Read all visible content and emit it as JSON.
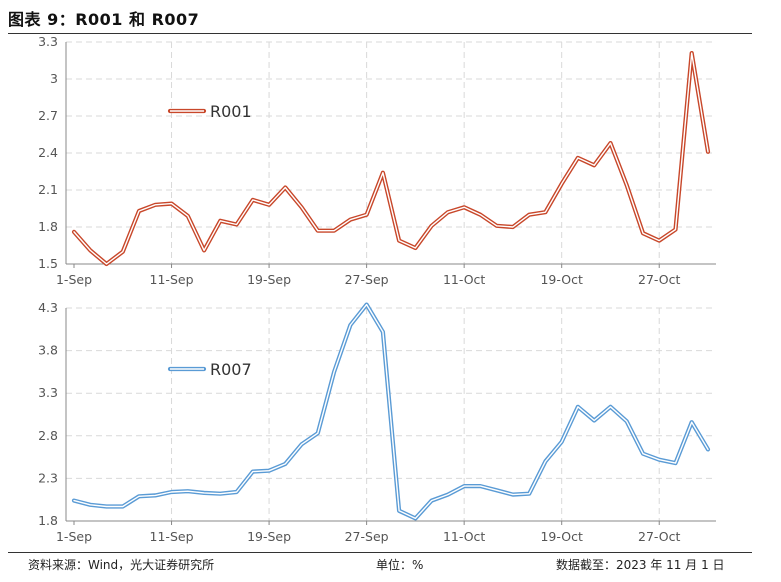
{
  "header": {
    "title": "图表 9：R001 和 R007"
  },
  "footer": {
    "source": "资料来源：Wind，光大证券研究所",
    "unit": "单位：%",
    "date": "数据截至：2023 年 11 月 1 日"
  },
  "chart_data": [
    {
      "type": "line",
      "title": "",
      "xlabel": "",
      "ylabel": "",
      "x_tick_labels": [
        "1-Sep",
        "11-Sep",
        "19-Sep",
        "27-Sep",
        "11-Oct",
        "19-Oct",
        "27-Oct"
      ],
      "x_tick_index": [
        0,
        6,
        12,
        18,
        24,
        30,
        36
      ],
      "y_tick_labels": [
        "1.5",
        "1.8",
        "2.1",
        "2.4",
        "2.7",
        "3",
        "3.3"
      ],
      "ylim": [
        1.5,
        3.3
      ],
      "grid": true,
      "legend": "upper-left",
      "series": [
        {
          "name": "R001",
          "color": "#c8472a",
          "values": [
            1.76,
            1.61,
            1.5,
            1.6,
            1.93,
            1.98,
            1.99,
            1.89,
            1.61,
            1.85,
            1.82,
            2.02,
            1.98,
            2.12,
            1.96,
            1.77,
            1.77,
            1.86,
            1.9,
            2.24,
            1.69,
            1.63,
            1.81,
            1.92,
            1.96,
            1.9,
            1.81,
            1.8,
            1.9,
            1.92,
            2.15,
            2.36,
            2.3,
            2.48,
            2.14,
            1.75,
            1.69,
            1.78,
            3.21,
            2.41
          ]
        }
      ]
    },
    {
      "type": "line",
      "title": "",
      "xlabel": "",
      "ylabel": "",
      "x_tick_labels": [
        "1-Sep",
        "11-Sep",
        "19-Sep",
        "27-Sep",
        "11-Oct",
        "19-Oct",
        "27-Oct"
      ],
      "x_tick_index": [
        0,
        6,
        12,
        18,
        24,
        30,
        36
      ],
      "y_tick_labels": [
        "1.8",
        "2.3",
        "2.8",
        "3.3",
        "3.8",
        "4.3"
      ],
      "ylim": [
        1.8,
        4.3
      ],
      "grid": true,
      "legend": "center-left",
      "series": [
        {
          "name": "R007",
          "color": "#5a9bd5",
          "values": [
            2.04,
            1.99,
            1.97,
            1.97,
            2.09,
            2.1,
            2.14,
            2.15,
            2.13,
            2.12,
            2.14,
            2.38,
            2.39,
            2.47,
            2.7,
            2.83,
            3.55,
            4.1,
            4.34,
            4.02,
            1.92,
            1.83,
            2.04,
            2.11,
            2.21,
            2.21,
            2.16,
            2.11,
            2.12,
            2.5,
            2.73,
            3.14,
            2.98,
            3.14,
            2.97,
            2.59,
            2.52,
            2.48,
            2.96,
            2.64
          ]
        }
      ]
    }
  ]
}
